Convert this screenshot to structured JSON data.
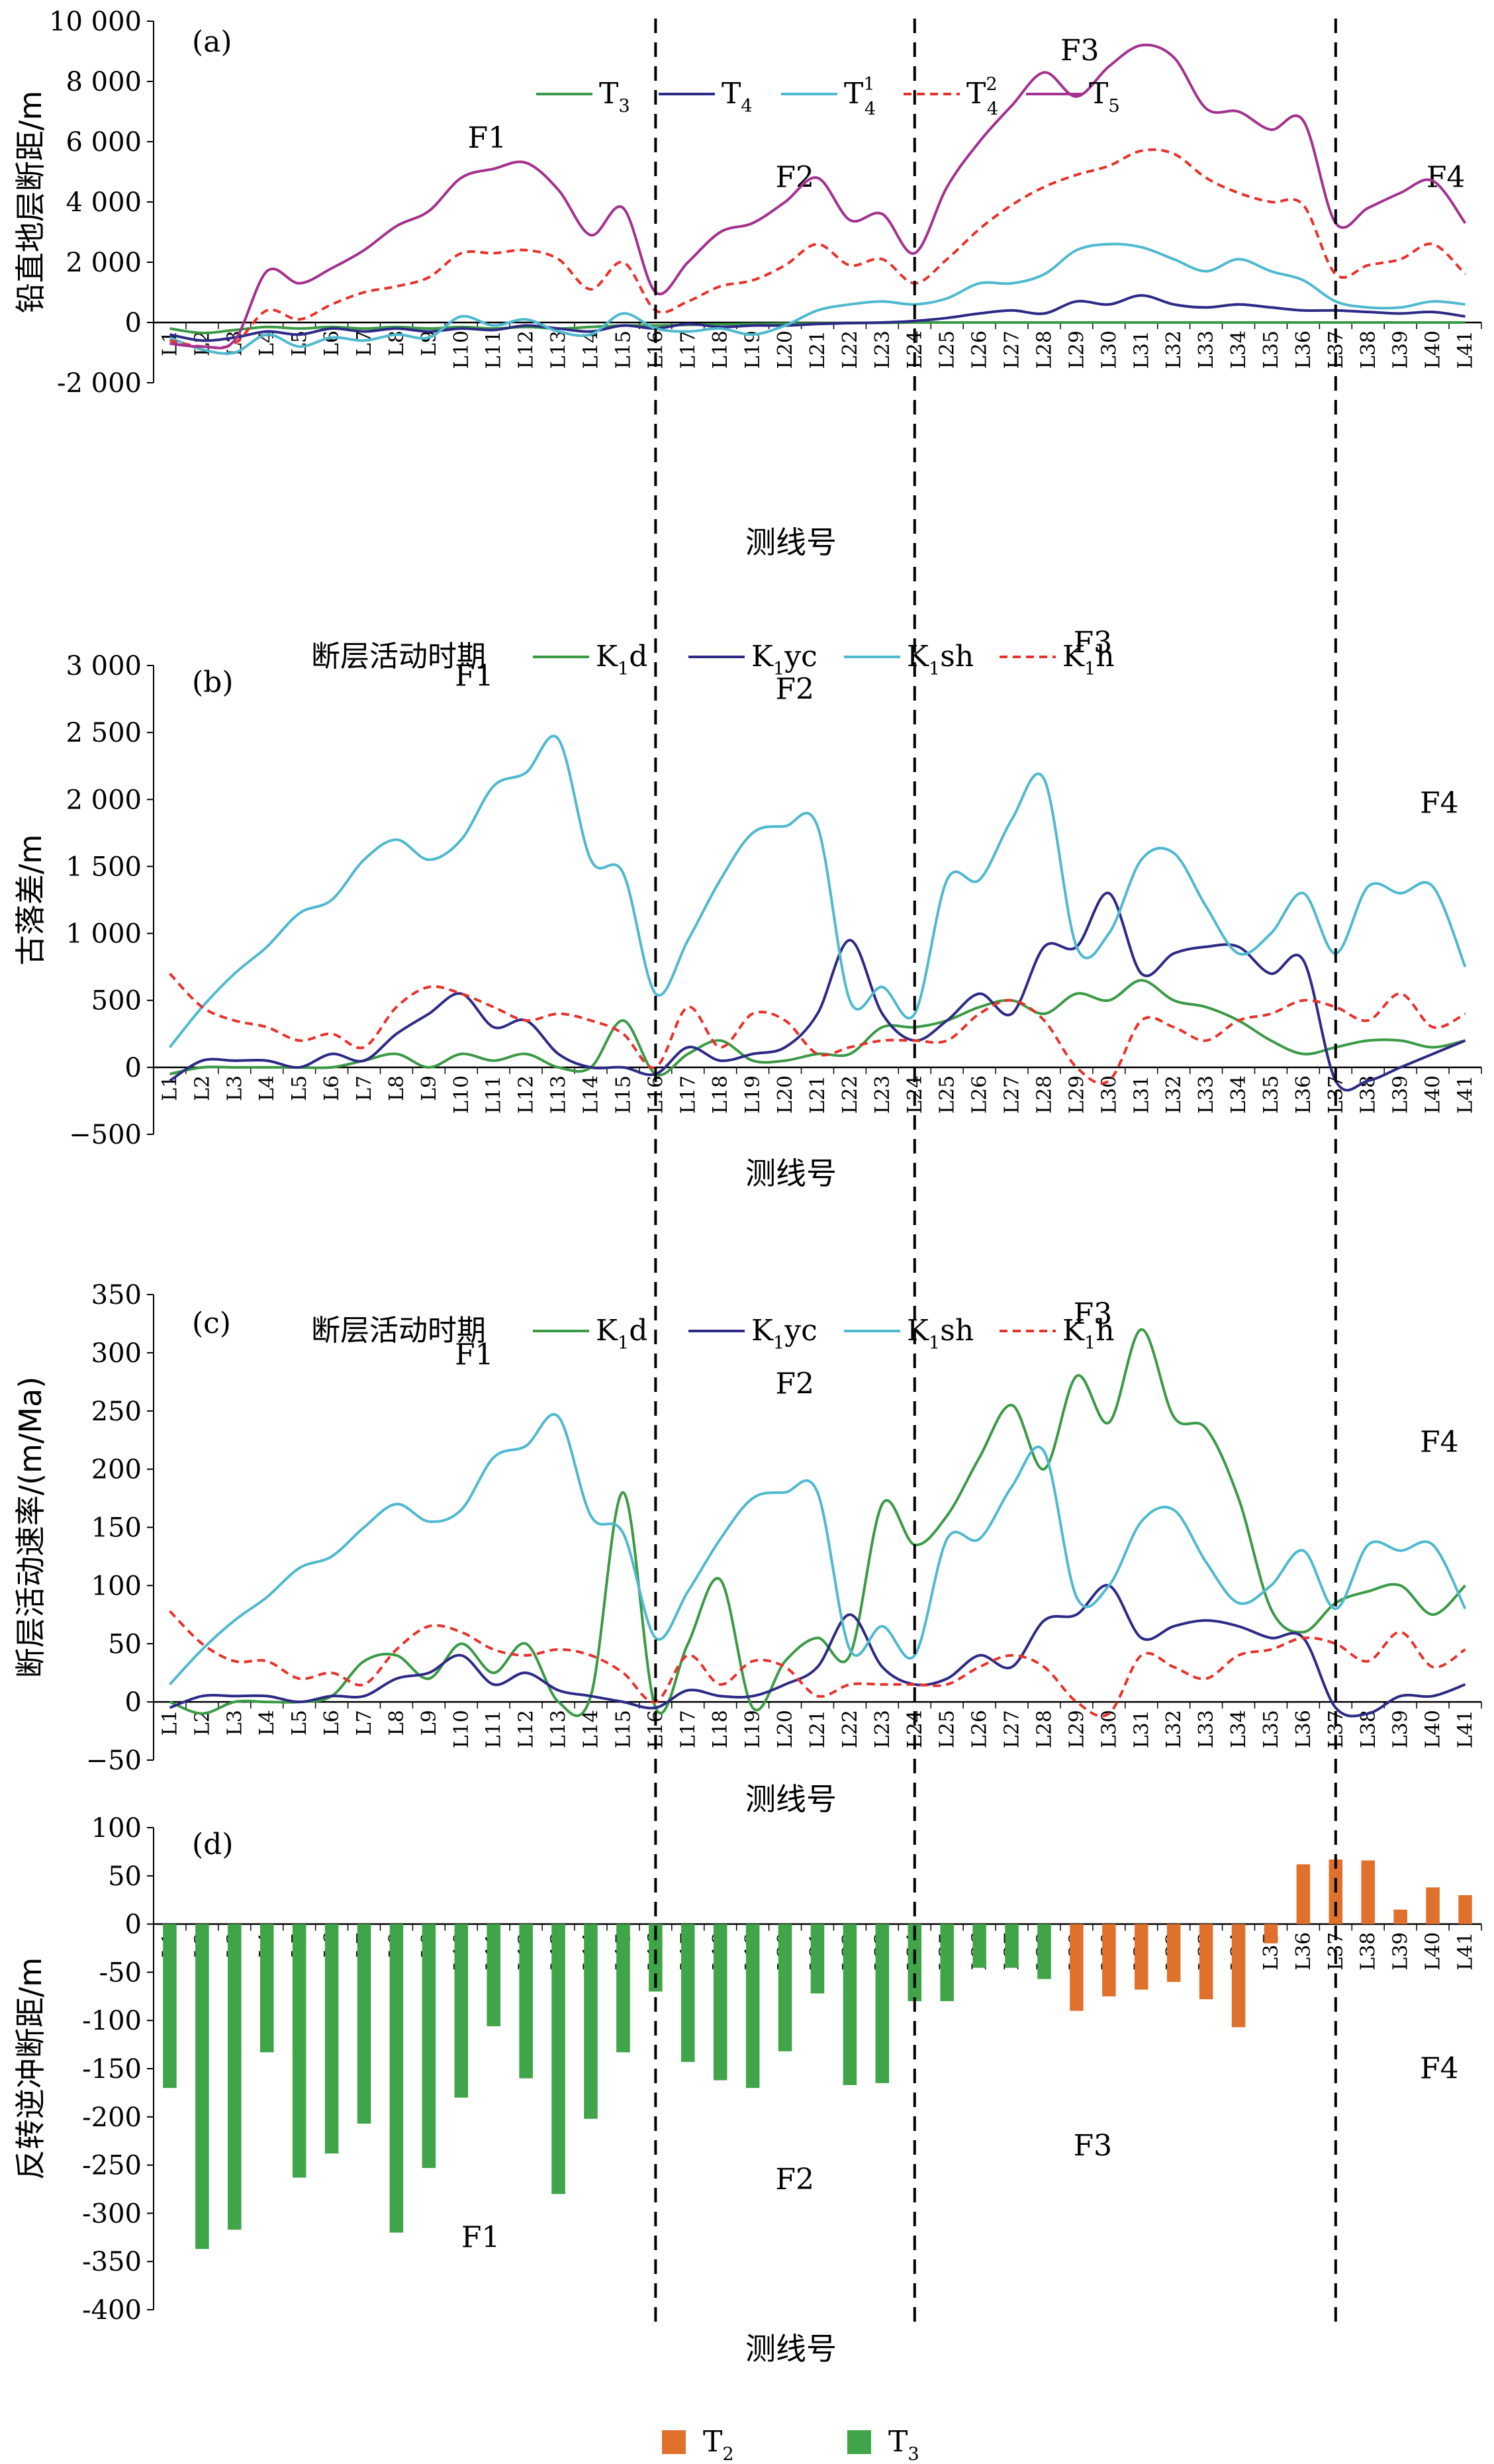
{
  "chart_data": [
    {
      "panel": "(a)",
      "type": "line",
      "xlabel": "测线号",
      "ylabel": "铅直地层断距/m",
      "categories": [
        "L1",
        "L2",
        "L3",
        "L4",
        "L5",
        "L6",
        "L7",
        "L8",
        "L9",
        "L10",
        "L11",
        "L12",
        "L13",
        "L14",
        "L15",
        "L16",
        "L17",
        "L18",
        "L19",
        "L20",
        "L21",
        "L22",
        "L23",
        "L24",
        "L25",
        "L26",
        "L27",
        "L28",
        "L29",
        "L30",
        "L31",
        "L32",
        "L33",
        "L34",
        "L35",
        "L36",
        "L37",
        "L38",
        "L39",
        "L40",
        "L41"
      ],
      "yticks": [
        "10 000",
        "8 000",
        "6 000",
        "4 000",
        "2 000",
        "0",
        "-2 000"
      ],
      "ylim": [
        -2000,
        10000
      ],
      "legend": [
        {
          "base": "T",
          "sub": "3",
          "sup": "",
          "color": "#3a9a45",
          "dash": false
        },
        {
          "base": "T",
          "sub": "4",
          "sup": "",
          "color": "#2d2a86",
          "dash": false
        },
        {
          "base": "T",
          "sub": "4",
          "sup": "1",
          "color": "#4fb9cf",
          "dash": false
        },
        {
          "base": "T",
          "sub": "4",
          "sup": "2",
          "color": "#e8312a",
          "dash": true
        },
        {
          "base": "T",
          "sub": "5",
          "sup": "",
          "color": "#a3318f",
          "dash": false
        }
      ],
      "fault_labels": [
        {
          "text": "F1",
          "x": 10.3,
          "y": 5800
        },
        {
          "text": "F2",
          "x": 19.8,
          "y": 4500
        },
        {
          "text": "F3",
          "x": 28.6,
          "y": 8700
        },
        {
          "text": "F4",
          "x": 39.9,
          "y": 4500
        }
      ],
      "series": [
        {
          "color": "#3a9a45",
          "dash": false,
          "values": [
            -200,
            -350,
            -250,
            -150,
            -200,
            -150,
            -200,
            -150,
            -200,
            -150,
            -200,
            -150,
            -200,
            -150,
            -100,
            -100,
            -80,
            -60,
            -50,
            -40,
            -30,
            -20,
            -10,
            0,
            0,
            0,
            0,
            0,
            0,
            0,
            0,
            0,
            0,
            0,
            0,
            0,
            0,
            0,
            0,
            0,
            0
          ]
        },
        {
          "color": "#2d2a86",
          "dash": false,
          "values": [
            -400,
            -600,
            -500,
            -300,
            -400,
            -200,
            -300,
            -200,
            -300,
            -200,
            -250,
            -100,
            -200,
            -300,
            -100,
            -200,
            -50,
            -150,
            -100,
            -100,
            -50,
            -20,
            0,
            50,
            150,
            300,
            400,
            300,
            700,
            600,
            900,
            600,
            500,
            600,
            500,
            400,
            400,
            350,
            300,
            350,
            200
          ]
        },
        {
          "color": "#4fb9cf",
          "dash": false,
          "values": [
            -500,
            -900,
            -1000,
            -400,
            -800,
            -500,
            -600,
            -400,
            -500,
            200,
            -100,
            100,
            -300,
            -400,
            300,
            -200,
            -300,
            -200,
            -400,
            -100,
            400,
            600,
            700,
            600,
            800,
            1300,
            1300,
            1600,
            2400,
            2600,
            2500,
            2100,
            1700,
            2100,
            1700,
            1400,
            700,
            500,
            500,
            700,
            600
          ]
        },
        {
          "color": "#e8312a",
          "dash": true,
          "values": [
            -600,
            -800,
            -700,
            400,
            100,
            600,
            1000,
            1200,
            1500,
            2300,
            2300,
            2400,
            2100,
            1100,
            2000,
            400,
            700,
            1200,
            1400,
            1900,
            2600,
            1900,
            2100,
            1300,
            2100,
            3100,
            3900,
            4500,
            4900,
            5200,
            5700,
            5600,
            4800,
            4300,
            4000,
            3900,
            1600,
            1900,
            2100,
            2600,
            1600
          ]
        },
        {
          "color": "#a3318f",
          "dash": false,
          "values": [
            -700,
            -800,
            -600,
            1700,
            1300,
            1800,
            2400,
            3200,
            3700,
            4800,
            5100,
            5300,
            4400,
            2900,
            3800,
            1000,
            2000,
            3000,
            3300,
            4000,
            4800,
            3400,
            3600,
            2300,
            4500,
            6000,
            7200,
            8300,
            7500,
            8500,
            9200,
            8800,
            7100,
            7000,
            6400,
            6700,
            3300,
            3800,
            4300,
            4700,
            3300
          ]
        }
      ]
    },
    {
      "panel": "(b)",
      "type": "line",
      "xlabel": "测线号",
      "ylabel": "古落差/m",
      "categories": [
        "L1",
        "L2",
        "L3",
        "L4",
        "L5",
        "L6",
        "L7",
        "L8",
        "L9",
        "L10",
        "L11",
        "L12",
        "L13",
        "L14",
        "L15",
        "L16",
        "L17",
        "L18",
        "L19",
        "L20",
        "L21",
        "L22",
        "L23",
        "L24",
        "L25",
        "L26",
        "L27",
        "L28",
        "L29",
        "L30",
        "L31",
        "L32",
        "L33",
        "L34",
        "L35",
        "L36",
        "L37",
        "L38",
        "L39",
        "L40",
        "L41"
      ],
      "yticks": [
        "3 000",
        "2 500",
        "2 000",
        "1 500",
        "1 000",
        "500",
        "0",
        "−500"
      ],
      "ylim": [
        -500,
        3000
      ],
      "legend_title": "断层活动时期",
      "legend": [
        {
          "base": "K",
          "sub": "1",
          "tail": "d",
          "color": "#3a9a45",
          "dash": false
        },
        {
          "base": "K",
          "sub": "1",
          "tail": "yc",
          "color": "#2d2a86",
          "dash": false
        },
        {
          "base": "K",
          "sub": "1",
          "tail": "sh",
          "color": "#4fb9cf",
          "dash": false
        },
        {
          "base": "K",
          "sub": "1",
          "tail": "h",
          "color": "#e8312a",
          "dash": true
        }
      ],
      "fault_labels": [
        {
          "text": "F1",
          "x": 9.9,
          "y": 2850
        },
        {
          "text": "F2",
          "x": 19.8,
          "y": 2750
        },
        {
          "text": "F3",
          "x": 29.0,
          "y": 3100
        },
        {
          "text": "F4",
          "x": 39.7,
          "y": 1900
        }
      ],
      "series": [
        {
          "color": "#3a9a45",
          "dash": false,
          "values": [
            -50,
            0,
            0,
            0,
            0,
            0,
            50,
            100,
            0,
            100,
            50,
            100,
            0,
            0,
            350,
            -50,
            100,
            200,
            50,
            50,
            100,
            100,
            300,
            300,
            350,
            450,
            500,
            400,
            550,
            500,
            650,
            500,
            450,
            350,
            200,
            100,
            150,
            200,
            200,
            150,
            200
          ]
        },
        {
          "color": "#2d2a86",
          "dash": false,
          "values": [
            -100,
            50,
            50,
            50,
            0,
            100,
            50,
            250,
            400,
            550,
            300,
            350,
            100,
            0,
            0,
            -50,
            150,
            50,
            100,
            150,
            400,
            950,
            400,
            200,
            350,
            550,
            400,
            900,
            900,
            1300,
            700,
            850,
            900,
            900,
            700,
            800,
            -100,
            -100,
            0,
            100,
            200
          ]
        },
        {
          "color": "#4fb9cf",
          "dash": false,
          "values": [
            150,
            450,
            700,
            900,
            1150,
            1250,
            1550,
            1700,
            1550,
            1700,
            2100,
            2200,
            2450,
            1550,
            1450,
            550,
            950,
            1400,
            1750,
            1800,
            1800,
            500,
            600,
            400,
            1400,
            1400,
            1850,
            2150,
            900,
            1000,
            1550,
            1600,
            1200,
            850,
            1000,
            1300,
            850,
            1350,
            1300,
            1350,
            750
          ]
        },
        {
          "color": "#e8312a",
          "dash": true,
          "values": [
            700,
            450,
            350,
            300,
            200,
            250,
            150,
            450,
            600,
            550,
            450,
            350,
            400,
            350,
            250,
            0,
            450,
            150,
            400,
            350,
            100,
            150,
            200,
            200,
            200,
            400,
            500,
            350,
            0,
            -100,
            350,
            300,
            200,
            350,
            400,
            500,
            450,
            350,
            550,
            300,
            400
          ]
        }
      ]
    },
    {
      "panel": "(c)",
      "type": "line",
      "xlabel": "测线号",
      "ylabel": "断层活动速率/(m/Ma)",
      "categories": [
        "L1",
        "L2",
        "L3",
        "L4",
        "L5",
        "L6",
        "L7",
        "L8",
        "L9",
        "L10",
        "L11",
        "L12",
        "L13",
        "L14",
        "L15",
        "L16",
        "L17",
        "L18",
        "L19",
        "L20",
        "L21",
        "L22",
        "L23",
        "L24",
        "L25",
        "L26",
        "L27",
        "L28",
        "L29",
        "L30",
        "L31",
        "L32",
        "L33",
        "L34",
        "L35",
        "L36",
        "L37",
        "L38",
        "L39",
        "L40",
        "L41"
      ],
      "yticks": [
        "350",
        "300",
        "250",
        "200",
        "150",
        "100",
        "50",
        "0",
        "−50"
      ],
      "ylim": [
        -50,
        350
      ],
      "legend_title": "断层活动时期",
      "legend": [
        {
          "base": "K",
          "sub": "1",
          "tail": "d",
          "color": "#3a9a45",
          "dash": false
        },
        {
          "base": "K",
          "sub": "1",
          "tail": "yc",
          "color": "#2d2a86",
          "dash": false
        },
        {
          "base": "K",
          "sub": "1",
          "tail": "sh",
          "color": "#4fb9cf",
          "dash": false
        },
        {
          "base": "K",
          "sub": "1",
          "tail": "h",
          "color": "#e8312a",
          "dash": true
        }
      ],
      "fault_labels": [
        {
          "text": "F1",
          "x": 9.9,
          "y": 290
        },
        {
          "text": "F2",
          "x": 19.8,
          "y": 265
        },
        {
          "text": "F3",
          "x": 29.0,
          "y": 325
        },
        {
          "text": "F4",
          "x": 39.7,
          "y": 215
        }
      ],
      "series": [
        {
          "color": "#3a9a45",
          "dash": false,
          "values": [
            0,
            -10,
            0,
            0,
            0,
            5,
            35,
            40,
            20,
            50,
            25,
            50,
            0,
            5,
            180,
            -5,
            50,
            105,
            -5,
            35,
            55,
            40,
            170,
            135,
            160,
            210,
            255,
            200,
            280,
            240,
            320,
            245,
            235,
            175,
            80,
            60,
            85,
            95,
            100,
            75,
            100
          ]
        },
        {
          "color": "#2d2a86",
          "dash": false,
          "values": [
            -5,
            5,
            5,
            5,
            0,
            5,
            5,
            20,
            25,
            40,
            15,
            25,
            10,
            5,
            0,
            -5,
            10,
            5,
            5,
            15,
            30,
            75,
            30,
            15,
            20,
            40,
            30,
            70,
            75,
            100,
            55,
            65,
            70,
            65,
            55,
            55,
            -5,
            -10,
            5,
            5,
            15
          ]
        },
        {
          "color": "#4fb9cf",
          "dash": false,
          "values": [
            15,
            45,
            70,
            90,
            115,
            125,
            150,
            170,
            155,
            165,
            210,
            220,
            245,
            160,
            145,
            55,
            95,
            140,
            175,
            180,
            180,
            45,
            65,
            40,
            140,
            140,
            185,
            215,
            90,
            100,
            155,
            165,
            120,
            85,
            100,
            130,
            80,
            135,
            130,
            135,
            80
          ]
        },
        {
          "color": "#e8312a",
          "dash": true,
          "values": [
            78,
            50,
            35,
            35,
            20,
            25,
            15,
            45,
            65,
            60,
            45,
            40,
            45,
            40,
            25,
            0,
            40,
            15,
            35,
            30,
            5,
            15,
            15,
            15,
            15,
            30,
            40,
            30,
            0,
            -10,
            40,
            30,
            20,
            40,
            45,
            55,
            50,
            35,
            60,
            30,
            45
          ]
        }
      ]
    },
    {
      "panel": "(d)",
      "type": "bar",
      "xlabel": "测线号",
      "ylabel": "反转逆冲断距/m",
      "categories": [
        "L1",
        "L2",
        "L3",
        "L4",
        "L5",
        "L6",
        "L7",
        "L8",
        "L9",
        "L10",
        "L11",
        "L12",
        "L13",
        "L14",
        "L15",
        "L16",
        "L17",
        "L18",
        "L19",
        "L20",
        "L21",
        "L22",
        "L23",
        "L24",
        "L25",
        "L26",
        "L27",
        "L28",
        "L29",
        "L30",
        "L31",
        "L32",
        "L33",
        "L34",
        "L35",
        "L36",
        "L37",
        "L38",
        "L39",
        "L40",
        "L41"
      ],
      "yticks": [
        "100",
        "50",
        "0",
        "-50",
        "-100",
        "-150",
        "-200",
        "-250",
        "-300",
        "-350",
        "-400"
      ],
      "ylim": [
        -400,
        100
      ],
      "legend": [
        {
          "base": "T",
          "sub": "2",
          "color": "#e0712c"
        },
        {
          "base": "T",
          "sub": "3",
          "color": "#3fa548"
        }
      ],
      "fault_labels": [
        {
          "text": "F1",
          "x": 10.1,
          "y": -335
        },
        {
          "text": "F2",
          "x": 19.8,
          "y": -275
        },
        {
          "text": "F3",
          "x": 29.0,
          "y": -240
        },
        {
          "text": "F4",
          "x": 39.7,
          "y": -160
        }
      ],
      "series": [
        {
          "name": "T2",
          "color": "#e0712c",
          "values": [
            null,
            null,
            null,
            null,
            null,
            null,
            null,
            null,
            null,
            null,
            null,
            null,
            null,
            null,
            null,
            null,
            null,
            null,
            null,
            null,
            null,
            null,
            null,
            null,
            null,
            null,
            null,
            null,
            -90,
            -75,
            -68,
            -60,
            -78,
            -107,
            -20,
            62,
            67,
            66,
            15,
            38,
            30
          ]
        },
        {
          "name": "T3",
          "color": "#3fa548",
          "values": [
            -170,
            -337,
            -317,
            -133,
            -263,
            -238,
            -207,
            -320,
            -253,
            -180,
            -106,
            -160,
            -280,
            -202,
            -133,
            -70,
            -143,
            -162,
            -170,
            -132,
            -72,
            -167,
            -165,
            -80,
            -80,
            -45,
            -45,
            -57,
            null,
            null,
            null,
            null,
            null,
            null,
            null,
            null,
            null,
            null,
            null,
            null,
            null
          ]
        }
      ]
    }
  ],
  "fault_boundaries": [
    "L16",
    "L24",
    "L37"
  ]
}
